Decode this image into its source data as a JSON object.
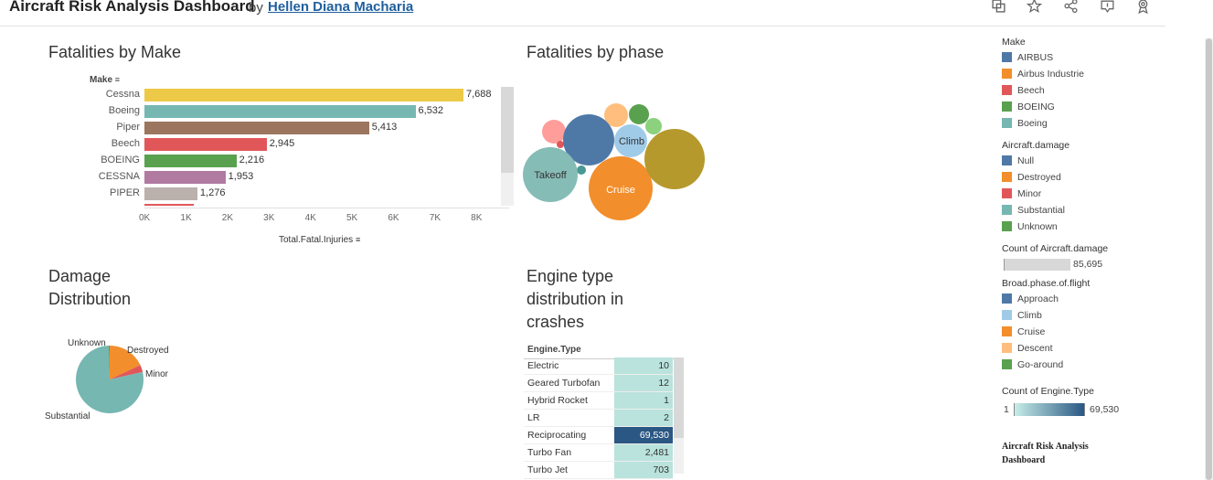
{
  "header": {
    "title": "Aircraft Risk Analysis Dashboard",
    "by": "by",
    "author": "Hellen Diana Macharia",
    "icons": [
      "copy-icon",
      "star-icon",
      "share-icon",
      "download-icon",
      "badge-icon"
    ]
  },
  "fatalities_by_make": {
    "title": "Fatalities by Make",
    "dimension_label": "Make",
    "measure_label": "Total.Fatal.Injuries"
  },
  "fatalities_by_phase": {
    "title": "Fatalities by phase",
    "bubble_labels": [
      "Takeoff",
      "Climb",
      "Cruise"
    ]
  },
  "damage_distribution": {
    "title": "Damage Distribution",
    "title_line1": "Damage",
    "title_line2": "Distribution",
    "slice_labels": [
      "Unknown",
      "Destroyed",
      "Minor",
      "Substantial"
    ]
  },
  "engine_type": {
    "title_line1": "Engine type",
    "title_line2": "distribution in",
    "title_line3": "crashes",
    "column_header": "Engine.Type",
    "rows": [
      {
        "name": "Electric",
        "value": "10"
      },
      {
        "name": "Geared Turbofan",
        "value": "12"
      },
      {
        "name": "Hybrid Rocket",
        "value": "1"
      },
      {
        "name": "LR",
        "value": "2"
      },
      {
        "name": "Reciprocating",
        "value": "69,530"
      },
      {
        "name": "Turbo Fan",
        "value": "2,481"
      },
      {
        "name": "Turbo Jet",
        "value": "703"
      }
    ]
  },
  "legends": {
    "make": {
      "title": "Make",
      "items": [
        {
          "label": "AIRBUS",
          "color": "#4e79a7"
        },
        {
          "label": "Airbus Industrie",
          "color": "#f28e2b"
        },
        {
          "label": "Beech",
          "color": "#e15759"
        },
        {
          "label": "BOEING",
          "color": "#59a14f"
        },
        {
          "label": "Boeing",
          "color": "#76b7b2"
        }
      ]
    },
    "damage": {
      "title": "Aircraft.damage",
      "items": [
        {
          "label": "Null",
          "color": "#4e79a7"
        },
        {
          "label": "Destroyed",
          "color": "#f28e2b"
        },
        {
          "label": "Minor",
          "color": "#e15759"
        },
        {
          "label": "Substantial",
          "color": "#76b7b2"
        },
        {
          "label": "Unknown",
          "color": "#59a14f"
        }
      ]
    },
    "count_damage": {
      "title": "Count of Aircraft.damage",
      "value": "85,695"
    },
    "phase": {
      "title": "Broad.phase.of.flight",
      "items": [
        {
          "label": "Approach",
          "color": "#4e79a7"
        },
        {
          "label": "Climb",
          "color": "#a0cbe8"
        },
        {
          "label": "Cruise",
          "color": "#f28e2b"
        },
        {
          "label": "Descent",
          "color": "#ffbe7d"
        },
        {
          "label": "Go-around",
          "color": "#59a14f"
        }
      ]
    },
    "count_engine": {
      "title": "Count of Engine.Type",
      "min": "1",
      "max": "69,530"
    },
    "footer_title_line1": "Aircraft Risk Analysis",
    "footer_title_line2": "Dashboard"
  },
  "chart_data": [
    {
      "type": "bar",
      "title": "Fatalities by Make",
      "ylabel": "Make",
      "xlabel": "Total.Fatal.Injuries",
      "categories": [
        "Cessna",
        "Boeing",
        "Piper",
        "Beech",
        "BOEING",
        "CESSNA",
        "PIPER"
      ],
      "values": [
        7688,
        6532,
        5413,
        2945,
        2216,
        1953,
        1276
      ],
      "value_labels": [
        "7,688",
        "6,532",
        "5,413",
        "2,945",
        "2,216",
        "1,953",
        "1,276"
      ],
      "colors": [
        "#edc948",
        "#76b7b2",
        "#9c755f",
        "#e15759",
        "#59a14f",
        "#b07aa1",
        "#bab0ac"
      ],
      "xlim": [
        0,
        8800
      ],
      "x_ticks": [
        0,
        1000,
        2000,
        3000,
        4000,
        5000,
        6000,
        7000,
        8000
      ],
      "x_tick_labels": [
        "0K",
        "1K",
        "2K",
        "3K",
        "4K",
        "5K",
        "6K",
        "7K",
        "8K"
      ]
    },
    {
      "type": "pie",
      "title": "Damage Distribution",
      "labels": [
        "Substantial",
        "Destroyed",
        "Minor",
        "Unknown"
      ],
      "values": [
        0.78,
        0.18,
        0.035,
        0.005
      ],
      "colors": [
        "#76b7b2",
        "#f28e2b",
        "#e15759",
        "#59a14f"
      ]
    },
    {
      "type": "table",
      "title": "Engine type distribution in crashes",
      "categories": [
        "Electric",
        "Geared Turbofan",
        "Hybrid Rocket",
        "LR",
        "Reciprocating",
        "Turbo Fan",
        "Turbo Jet"
      ],
      "values": [
        10,
        12,
        1,
        2,
        69530,
        2481,
        703
      ]
    }
  ]
}
